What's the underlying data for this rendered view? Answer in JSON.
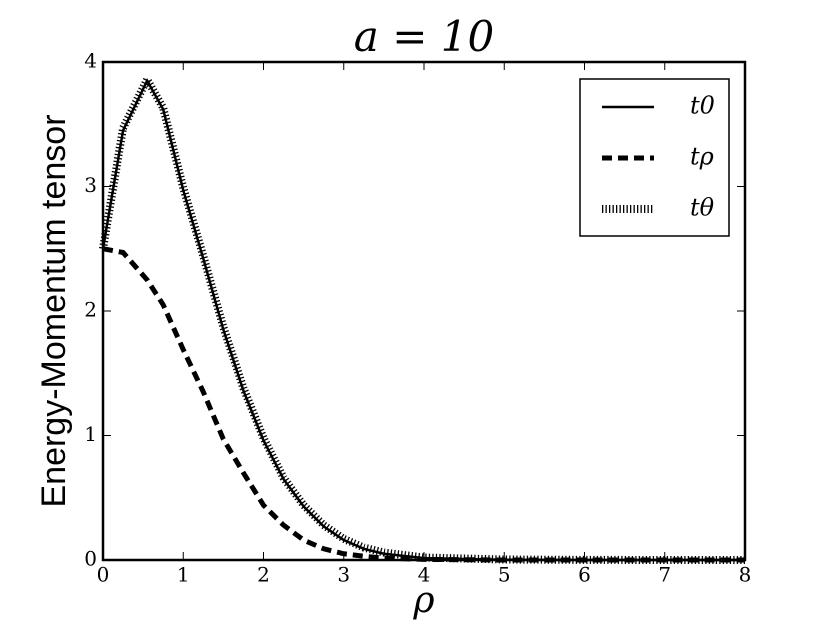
{
  "chart_data": {
    "type": "line",
    "title": "a = 10",
    "x_label": "ρ",
    "y_label": "Energy-Momentum tensor",
    "x": [
      0,
      0.25,
      0.55,
      0.75,
      1,
      1.25,
      1.5,
      1.75,
      2,
      2.25,
      2.5,
      2.75,
      3,
      3.25,
      3.5,
      4,
      5,
      6,
      7,
      8
    ],
    "series": [
      {
        "name": "t0",
        "color": "#000000",
        "linestyle": "solid",
        "values": [
          2.5,
          3.45,
          3.85,
          3.62,
          2.97,
          2.42,
          1.85,
          1.36,
          0.96,
          0.65,
          0.43,
          0.27,
          0.16,
          0.09,
          0.05,
          0.015,
          0.002,
          0,
          0,
          0
        ]
      },
      {
        "name": "tρ",
        "color": "#000000",
        "linestyle": "dashed",
        "values": [
          2.5,
          2.47,
          2.25,
          2.05,
          1.69,
          1.35,
          0.97,
          0.7,
          0.44,
          0.28,
          0.16,
          0.09,
          0.05,
          0.03,
          0.015,
          0.005,
          0,
          0,
          0,
          0
        ]
      },
      {
        "name": "tθ",
        "color": "#000000",
        "linestyle": "hatched",
        "values": [
          2.5,
          3.47,
          3.86,
          3.63,
          2.99,
          2.44,
          1.87,
          1.38,
          0.98,
          0.66,
          0.44,
          0.28,
          0.17,
          0.1,
          0.06,
          0.02,
          0.004,
          0.001,
          0,
          0
        ]
      }
    ],
    "xlim": [
      0,
      8
    ],
    "xticks": [
      0,
      1,
      2,
      3,
      4,
      5,
      6,
      7,
      8
    ],
    "ylim": [
      0,
      4
    ],
    "yticks": [
      0,
      1,
      2,
      3,
      4
    ],
    "legend": "upper right"
  }
}
